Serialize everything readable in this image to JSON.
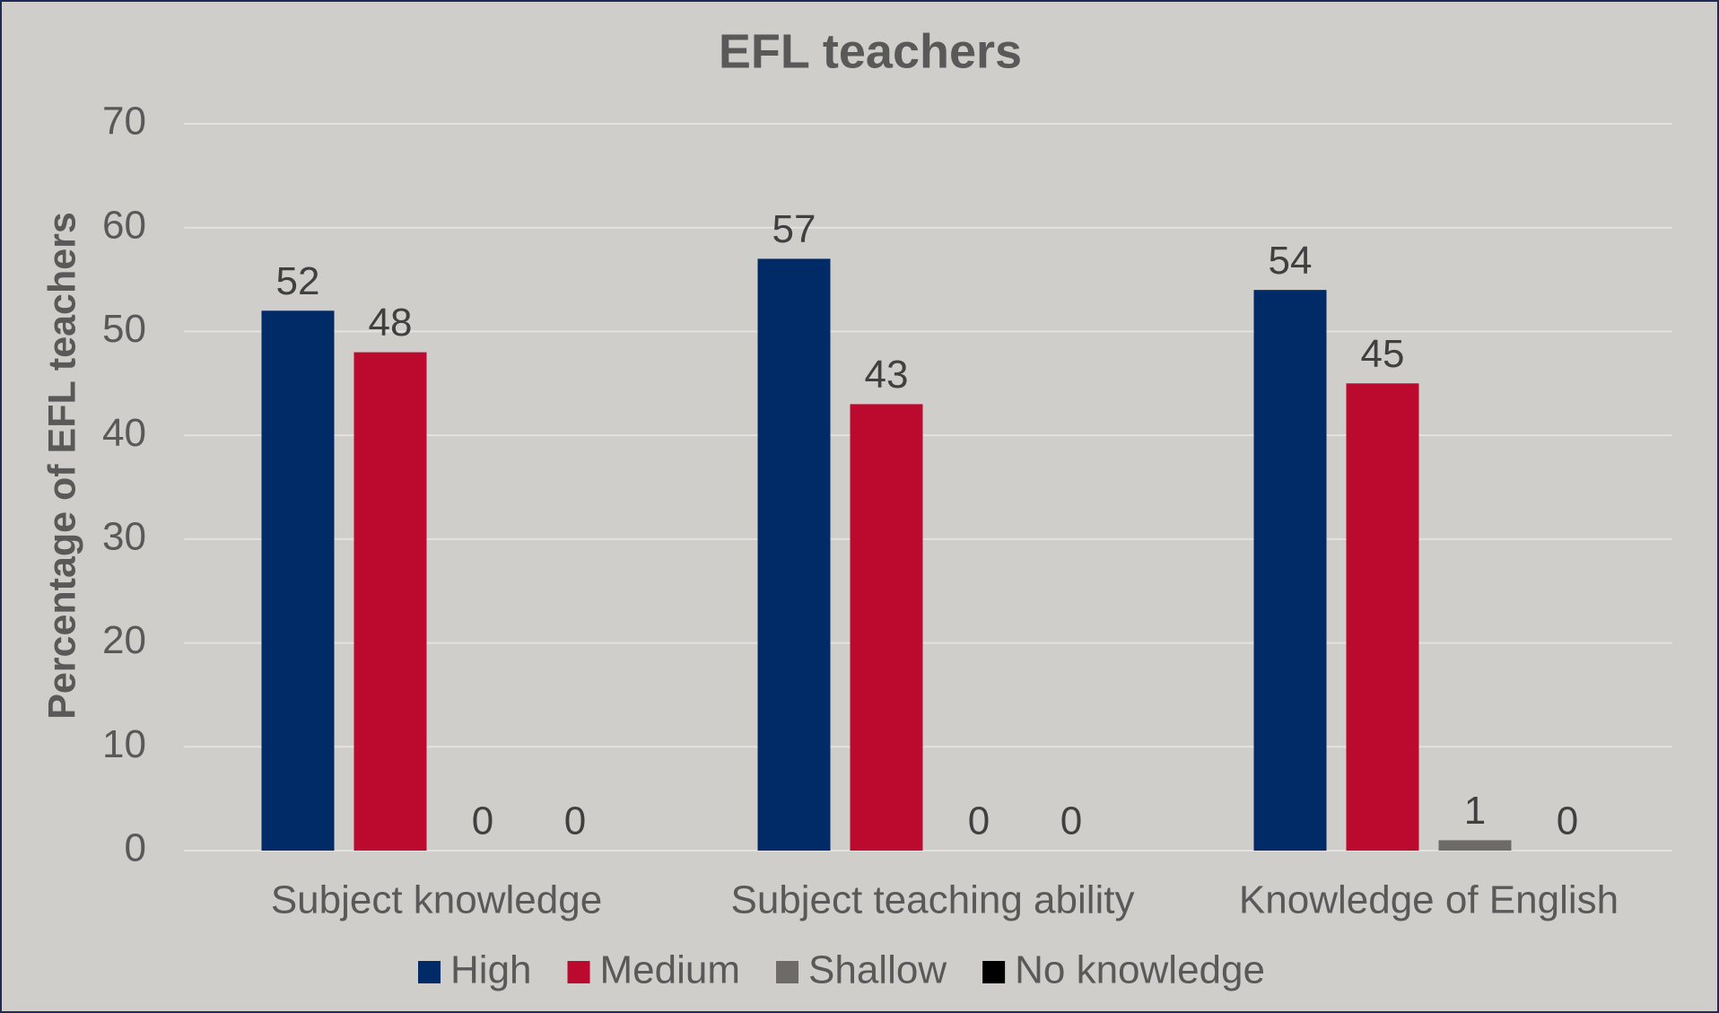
{
  "chart_data": {
    "type": "bar",
    "title": "EFL teachers",
    "y_label": "Percentage of EFL teachers",
    "categories": [
      "Subject knowledge",
      "Subject teaching ability",
      "Knowledge of English"
    ],
    "series": [
      {
        "name": "High",
        "color": "#002b66",
        "values": [
          52,
          57,
          54
        ]
      },
      {
        "name": "Medium",
        "color": "#bb0a2e",
        "values": [
          48,
          43,
          45
        ]
      },
      {
        "name": "Shallow",
        "color": "#6e6a67",
        "values": [
          0,
          0,
          1
        ]
      },
      {
        "name": "No knowledge",
        "color": "#000000",
        "values": [
          0,
          0,
          0
        ]
      }
    ],
    "ylim": [
      0,
      70
    ],
    "yticks": [
      0,
      10,
      20,
      30,
      40,
      50,
      60,
      70
    ],
    "grid": true,
    "legend": "bottom"
  }
}
